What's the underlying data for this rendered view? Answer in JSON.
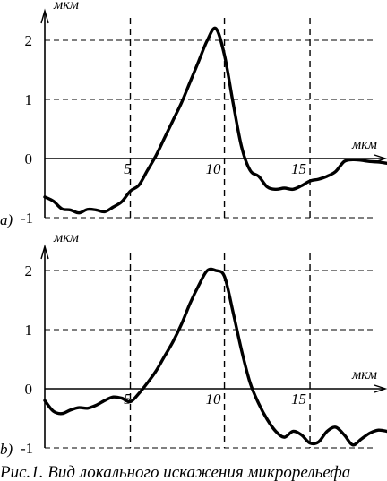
{
  "caption": "Рис.1. Вид локального искажения микрорельефа",
  "chart_data": [
    {
      "type": "line",
      "panel_label": "a)",
      "ylabel": "мкм",
      "xlabel": "мкм",
      "ylim": [
        -1,
        2.2
      ],
      "xlim": [
        0,
        20
      ],
      "yticks": [
        "2",
        "1",
        "0",
        "-1"
      ],
      "xticks": [
        "5",
        "10",
        "15"
      ],
      "series": [
        {
          "x": [
            0,
            0.5,
            1,
            1.5,
            2,
            2.5,
            3,
            3.5,
            4,
            4.5,
            5,
            5.5,
            6,
            6.5,
            7,
            7.5,
            8,
            8.5,
            9,
            9.5,
            10,
            10.5,
            11,
            11.5,
            12,
            12.5,
            13,
            13.5,
            14,
            14.5,
            15,
            15.5,
            16,
            16.5,
            17,
            17.5,
            18,
            18.5,
            19,
            19.5,
            20
          ],
          "y": [
            -0.65,
            -0.72,
            -0.85,
            -0.87,
            -0.92,
            -0.86,
            -0.87,
            -0.9,
            -0.82,
            -0.73,
            -0.55,
            -0.45,
            -0.2,
            0.05,
            0.35,
            0.65,
            0.95,
            1.3,
            1.65,
            2.0,
            2.2,
            1.75,
            0.95,
            0.2,
            -0.2,
            -0.3,
            -0.48,
            -0.52,
            -0.5,
            -0.52,
            -0.46,
            -0.38,
            -0.35,
            -0.3,
            -0.22,
            -0.05,
            -0.02,
            -0.03,
            -0.05,
            -0.06,
            -0.08
          ]
        }
      ]
    },
    {
      "type": "line",
      "panel_label": "b)",
      "ylabel": "мкм",
      "xlabel": "мкм",
      "ylim": [
        -1,
        2.2
      ],
      "xlim": [
        0,
        20
      ],
      "yticks": [
        "2",
        "1",
        "0",
        "-1"
      ],
      "xticks": [
        "5",
        "10",
        "15"
      ],
      "series": [
        {
          "x": [
            0,
            0.5,
            1,
            1.5,
            2,
            2.5,
            3,
            3.5,
            4,
            4.5,
            5,
            5.5,
            6,
            6.5,
            7,
            7.5,
            8,
            8.5,
            9,
            9.5,
            10,
            10.5,
            11,
            11.5,
            12,
            12.5,
            13,
            13.5,
            14,
            14.5,
            15,
            15.5,
            16,
            16.5,
            17,
            17.5,
            18,
            18.5,
            19,
            19.5,
            20
          ],
          "y": [
            -0.2,
            -0.38,
            -0.42,
            -0.36,
            -0.32,
            -0.33,
            -0.28,
            -0.2,
            -0.14,
            -0.16,
            -0.22,
            -0.08,
            0.1,
            0.3,
            0.55,
            0.8,
            1.1,
            1.45,
            1.75,
            2.0,
            2.0,
            1.9,
            1.3,
            0.65,
            0.1,
            -0.25,
            -0.52,
            -0.72,
            -0.82,
            -0.72,
            -0.78,
            -0.92,
            -0.9,
            -0.72,
            -0.65,
            -0.78,
            -0.95,
            -0.85,
            -0.75,
            -0.7,
            -0.72
          ]
        }
      ]
    }
  ]
}
